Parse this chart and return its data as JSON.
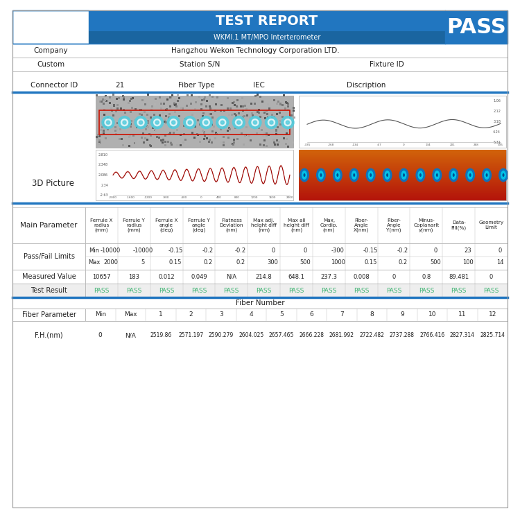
{
  "title": "TEST REPORT",
  "subtitle": "WKMI.1 MT/MPO Interterometer",
  "pass_label": "PASS",
  "header_bg": "#2176c0",
  "company_label": "Company",
  "company_value": "Hangzhou Wekon Technology Corporation LTD.",
  "custom_label": "Custom",
  "station_label": "Station S/N",
  "fixture_label": "Fixture ID",
  "connector_id_label": "Connector ID",
  "connector_id_value": "21",
  "fiber_type_label": "Fiber Type",
  "fiber_type_value": "IEC",
  "discription_label": "Discription",
  "picture_label": "3D Picture",
  "main_param_label": "Main Parameter",
  "main_param_cols": [
    "Ferrule X\nradius\n(mm)",
    "Ferrule Y\nradius\n(mm)",
    "Ferrule X\nangle\n(deg)",
    "Ferrule Y\nangle\n(deg)",
    "Flatness\nDeviation\n(nm)",
    "Max adj.\nheight diff\n(nm)",
    "Max all\nheight diff\n(nm)",
    "Max,\nCordip.\n(nm)",
    "Fiber-\nAngle\nX(nm)",
    "Fiber-\nAngle\nY(nm)",
    "Minus-\nCoplanarIt\ny(nm)",
    "Data-\nFill(%)",
    "Geometry\nLimit"
  ],
  "pass_fail_label": "Pass/Fail Limits",
  "min_label": "Min",
  "max_label": "Max",
  "pf_min": [
    "-10000",
    "-10000",
    "-0.15",
    "-0.2",
    "-0.2",
    "0",
    "0",
    "-300",
    "-0.15",
    "-0.2",
    "0",
    "23",
    "0"
  ],
  "pf_max": [
    "2000",
    "5",
    "0.15",
    "0.2",
    "0.2",
    "300",
    "500",
    "1000",
    "0.15",
    "0.2",
    "500",
    "100",
    "14"
  ],
  "measured_label": "Measured Value",
  "measured_vals": [
    "10657",
    "183",
    "0.012",
    "0.049",
    "N/A",
    "214.8",
    "648.1",
    "237.3",
    "0.008",
    "0",
    "0.8",
    "89.481",
    "0"
  ],
  "test_result_label": "Test Result",
  "test_result_vals": [
    "PASS",
    "PASS",
    "PASS",
    "PASS",
    "PASS",
    "PASS",
    "PASS",
    "PASS",
    "PASS",
    "PASS",
    "PASS",
    "PASS",
    "PASS"
  ],
  "pass_color": "#3cb371",
  "fiber_number_label": "Fiber Number",
  "fiber_param_label": "Fiber Parameter",
  "fiber_param_cols": [
    "Min",
    "Max",
    "1",
    "2",
    "3",
    "4",
    "5",
    "6",
    "7",
    "8",
    "9",
    "10",
    "11",
    "12"
  ],
  "fh_label": "F.H.(nm)",
  "fh_min": "0",
  "fh_max": "N/A",
  "fh_values": [
    "2519.86",
    "2571.197",
    "2590.279",
    "2604.025",
    "2657.465",
    "2666.228",
    "2681.992",
    "2722.482",
    "2737.288",
    "2766.416",
    "2827.314",
    "2825.714"
  ],
  "divider_color": "#2176c0",
  "border_color": "#bbbbbb",
  "text_dark": "#222222",
  "bg_white": "#ffffff",
  "tr_bg": "#f0f0f0"
}
